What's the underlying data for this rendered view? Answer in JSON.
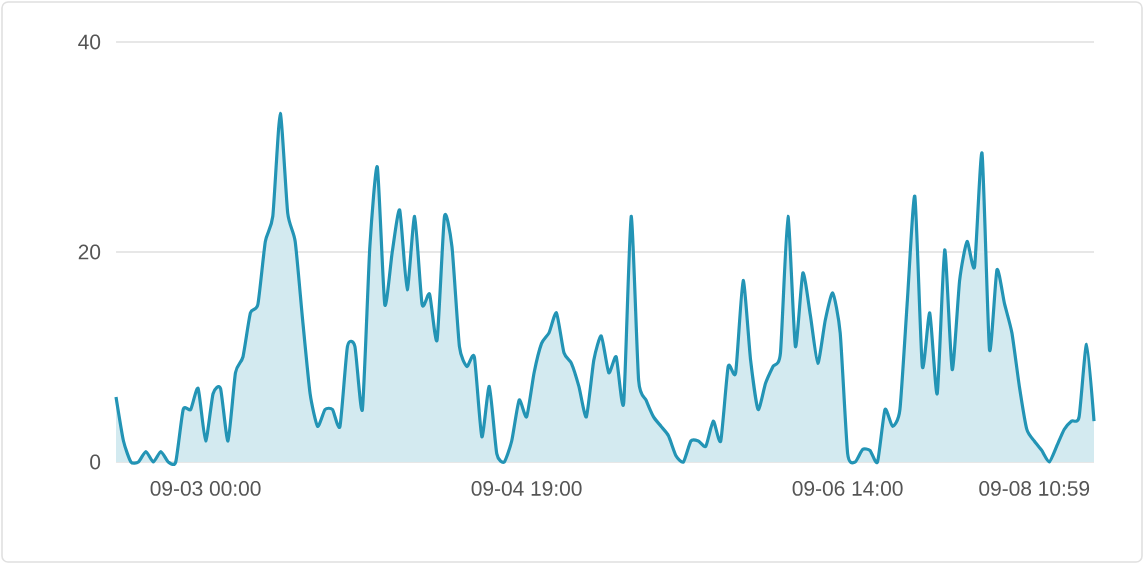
{
  "chart_data": {
    "type": "area",
    "categories": [
      null,
      null,
      null,
      null,
      null,
      null,
      null,
      null,
      null,
      null,
      null,
      null,
      "09-03 00:00",
      null,
      null,
      null,
      null,
      null,
      null,
      null,
      null,
      null,
      null,
      null,
      null,
      null,
      null,
      null,
      null,
      null,
      null,
      null,
      null,
      null,
      null,
      null,
      null,
      null,
      null,
      null,
      null,
      null,
      null,
      null,
      null,
      null,
      null,
      null,
      null,
      null,
      null,
      null,
      null,
      null,
      null,
      "09-04 19:00",
      null,
      null,
      null,
      null,
      null,
      null,
      null,
      null,
      null,
      null,
      null,
      null,
      null,
      null,
      null,
      null,
      null,
      null,
      null,
      null,
      null,
      null,
      null,
      null,
      null,
      null,
      null,
      null,
      null,
      null,
      null,
      null,
      null,
      null,
      null,
      null,
      null,
      null,
      null,
      null,
      null,
      null,
      "09-06 14:00",
      null,
      null,
      null,
      null,
      null,
      null,
      null,
      null,
      null,
      null,
      null,
      null,
      null,
      null,
      null,
      null,
      null,
      null,
      null,
      null,
      null,
      null,
      null,
      null,
      "09-08 10:59",
      null,
      null,
      null,
      null,
      null,
      null,
      null,
      null
    ],
    "series": [
      {
        "color": "#2394b5",
        "values": [
          6.2,
          2,
          0,
          0,
          1,
          0,
          1,
          0,
          0,
          5,
          5,
          7,
          2,
          6.5,
          7,
          2,
          8.5,
          10,
          14.2,
          15,
          21,
          23.4,
          33.2,
          23.7,
          21,
          13.5,
          6.5,
          3.4,
          5,
          5,
          3.4,
          11,
          11,
          5,
          20.5,
          28.1,
          15,
          20,
          24,
          16.4,
          23.4,
          15,
          16,
          11.6,
          23.4,
          20.5,
          11,
          9.1,
          10,
          2.4,
          7.2,
          0.8,
          0,
          2,
          5.9,
          4.3,
          8.5,
          11.3,
          12.3,
          14.2,
          10.4,
          9.4,
          7.2,
          4.3,
          9.7,
          12,
          8.5,
          10,
          5.6,
          23.4,
          7.8,
          5.9,
          4.3,
          3.4,
          2.5,
          0.6,
          0,
          2,
          2,
          1.5,
          3.9,
          2,
          9.1,
          8.5,
          17.3,
          9.7,
          5,
          7.5,
          9.1,
          10.4,
          23.4,
          11,
          18,
          14,
          9.4,
          13.5,
          16.1,
          12.3,
          0.8,
          0,
          1.2,
          1.1,
          0,
          5,
          3.4,
          5,
          15.4,
          25.3,
          9.1,
          14.2,
          6.5,
          20.2,
          8.8,
          17.3,
          21,
          18.6,
          29.4,
          10.7,
          18.3,
          15.1,
          12.3,
          7.2,
          3.1,
          2,
          1.1,
          0,
          1.5,
          3.1,
          3.9,
          4.3,
          11.2,
          3.9
        ]
      }
    ],
    "ylim": [
      0,
      40
    ],
    "yticks": [
      0,
      20,
      40
    ],
    "grid": "y"
  }
}
